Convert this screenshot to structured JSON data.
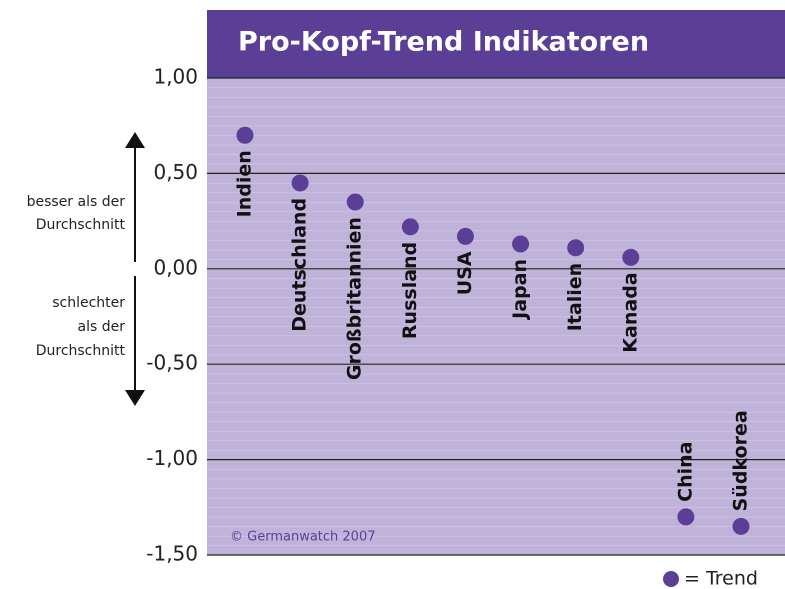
{
  "chart_data": {
    "type": "scatter",
    "title": "Pro-Kopf-Trend Indikatoren",
    "categories": [
      "Indien",
      "Deutschland",
      "Großbritannien",
      "Russland",
      "USA",
      "Japan",
      "Italien",
      "Kanada",
      "China",
      "Südkorea"
    ],
    "values": [
      0.7,
      0.45,
      0.35,
      0.22,
      0.17,
      0.13,
      0.11,
      0.06,
      -1.3,
      -1.35
    ],
    "color": "#5b3f97",
    "ylim": [
      -1.5,
      1.0
    ],
    "yticks": [
      {
        "value": 1.0,
        "label": "1,00"
      },
      {
        "value": 0.5,
        "label": "0,50"
      },
      {
        "value": 0,
        "label": "0,00"
      },
      {
        "value": -0.5,
        "label": "-0,50"
      },
      {
        "value": -1.0,
        "label": "-1,00"
      },
      {
        "value": -1.5,
        "label": "-1,50"
      }
    ],
    "grid": true,
    "annotations": {
      "better": [
        "besser als der",
        "Durchschnitt"
      ],
      "worse": [
        "schlechter",
        "als der",
        "Durchschnitt"
      ],
      "copyright": "© Germanwatch 2007"
    },
    "legend": "= Trend"
  }
}
